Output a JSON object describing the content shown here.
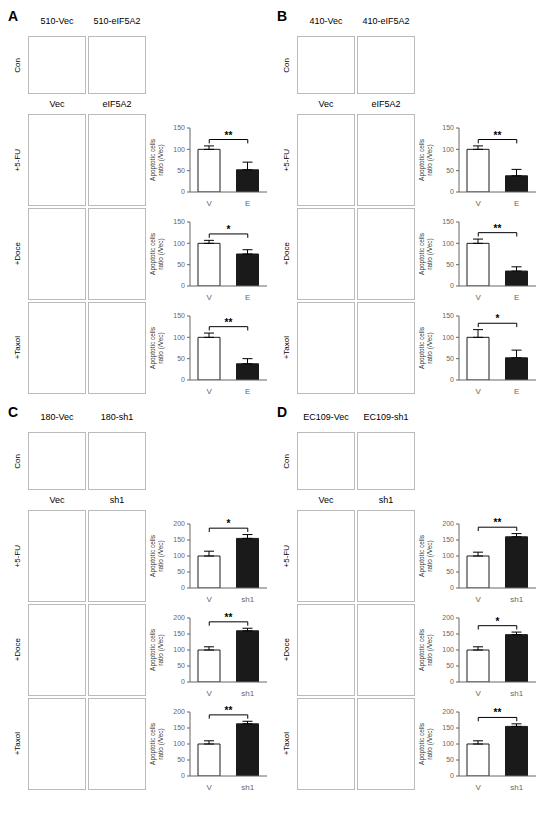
{
  "chart_data": [
    {
      "type": "bar",
      "title": "+5-FU",
      "categories": [
        "V",
        "E"
      ],
      "values": [
        100,
        52
      ],
      "error": [
        8,
        18
      ],
      "colors": [
        "#ffffff",
        "#1a1a1a"
      ],
      "annotations": [
        "**"
      ],
      "ylabel": "Apoptotic cells\nratio (/Vec)",
      "ylim": [
        0,
        150
      ],
      "yticks": [
        0,
        50,
        100,
        150
      ],
      "grid": false
    },
    {
      "type": "bar",
      "title": "+Doce",
      "categories": [
        "V",
        "E"
      ],
      "values": [
        100,
        75
      ],
      "error": [
        7,
        10
      ],
      "colors": [
        "#ffffff",
        "#1a1a1a"
      ],
      "annotations": [
        "*"
      ],
      "ylabel": "Apoptotic cells\nratio (/Vec)",
      "ylim": [
        0,
        150
      ],
      "yticks": [
        0,
        50,
        100,
        150
      ],
      "grid": false
    },
    {
      "type": "bar",
      "title": "+Taxol",
      "categories": [
        "V",
        "E"
      ],
      "values": [
        100,
        38
      ],
      "error": [
        10,
        12
      ],
      "colors": [
        "#ffffff",
        "#1a1a1a"
      ],
      "annotations": [
        "**"
      ],
      "ylabel": "Apoptotic cells\nratio (/Vec)",
      "ylim": [
        0,
        150
      ],
      "yticks": [
        0,
        50,
        100,
        150
      ],
      "grid": false
    },
    {
      "type": "bar",
      "title": "+5-FU",
      "categories": [
        "V",
        "E"
      ],
      "values": [
        100,
        38
      ],
      "error": [
        8,
        15
      ],
      "colors": [
        "#ffffff",
        "#1a1a1a"
      ],
      "annotations": [
        "**"
      ],
      "ylabel": "Apoptotic cells\nratio (/Vec)",
      "ylim": [
        0,
        150
      ],
      "yticks": [
        0,
        50,
        100,
        150
      ],
      "grid": false
    },
    {
      "type": "bar",
      "title": "+Doce",
      "categories": [
        "V",
        "E"
      ],
      "values": [
        100,
        35
      ],
      "error": [
        10,
        10
      ],
      "colors": [
        "#ffffff",
        "#1a1a1a"
      ],
      "annotations": [
        "**"
      ],
      "ylabel": "Apoptotic cells\nratio (/Vec)",
      "ylim": [
        0,
        150
      ],
      "yticks": [
        0,
        50,
        100,
        150
      ],
      "grid": false
    },
    {
      "type": "bar",
      "title": "+Taxol",
      "categories": [
        "V",
        "E"
      ],
      "values": [
        100,
        52
      ],
      "error": [
        18,
        18
      ],
      "colors": [
        "#ffffff",
        "#1a1a1a"
      ],
      "annotations": [
        "*"
      ],
      "ylabel": "Apoptotic cells\nratio (/Vec)",
      "ylim": [
        0,
        150
      ],
      "yticks": [
        0,
        50,
        100,
        150
      ],
      "grid": false
    },
    {
      "type": "bar",
      "title": "+5-FU",
      "categories": [
        "V",
        "sh1"
      ],
      "values": [
        100,
        155
      ],
      "error": [
        15,
        12
      ],
      "colors": [
        "#ffffff",
        "#1a1a1a"
      ],
      "annotations": [
        "*"
      ],
      "ylabel": "Apoptotic cells\nratio (/Vec)",
      "ylim": [
        0,
        200
      ],
      "yticks": [
        0,
        50,
        100,
        150,
        200
      ],
      "grid": false
    },
    {
      "type": "bar",
      "title": "+Doce",
      "categories": [
        "V",
        "sh1"
      ],
      "values": [
        100,
        160
      ],
      "error": [
        10,
        8
      ],
      "colors": [
        "#ffffff",
        "#1a1a1a"
      ],
      "annotations": [
        "**"
      ],
      "ylabel": "Apoptotic cells\nratio (/Vec)",
      "ylim": [
        0,
        200
      ],
      "yticks": [
        0,
        50,
        100,
        150,
        200
      ],
      "grid": false
    },
    {
      "type": "bar",
      "title": "+Taxol",
      "categories": [
        "V",
        "sh1"
      ],
      "values": [
        100,
        163
      ],
      "error": [
        10,
        8
      ],
      "colors": [
        "#ffffff",
        "#1a1a1a"
      ],
      "annotations": [
        "**"
      ],
      "ylabel": "Apoptotic cells\nratio (/Vec)",
      "ylim": [
        0,
        200
      ],
      "yticks": [
        0,
        50,
        100,
        150,
        200
      ],
      "grid": false
    },
    {
      "type": "bar",
      "title": "+5-FU",
      "categories": [
        "V",
        "sh1"
      ],
      "values": [
        100,
        160
      ],
      "error": [
        12,
        10
      ],
      "colors": [
        "#ffffff",
        "#1a1a1a"
      ],
      "annotations": [
        "**"
      ],
      "ylabel": "Apoptotic cells\nratio (/Vec)",
      "ylim": [
        0,
        200
      ],
      "yticks": [
        0,
        50,
        100,
        150,
        200
      ],
      "grid": false
    },
    {
      "type": "bar",
      "title": "+Doce",
      "categories": [
        "V",
        "sh1"
      ],
      "values": [
        100,
        148
      ],
      "error": [
        10,
        8
      ],
      "colors": [
        "#ffffff",
        "#1a1a1a"
      ],
      "annotations": [
        "*"
      ],
      "ylabel": "Apoptotic cells\nratio (/Vec)",
      "ylim": [
        0,
        200
      ],
      "yticks": [
        0,
        50,
        100,
        150,
        200
      ],
      "grid": false
    },
    {
      "type": "bar",
      "title": "+Taxol",
      "categories": [
        "V",
        "sh1"
      ],
      "values": [
        100,
        155
      ],
      "error": [
        10,
        8
      ],
      "colors": [
        "#ffffff",
        "#1a1a1a"
      ],
      "annotations": [
        "**"
      ],
      "ylabel": "Apoptotic cells\nratio (/Vec)",
      "ylim": [
        0,
        200
      ],
      "yticks": [
        0,
        50,
        100,
        150,
        200
      ],
      "grid": false
    }
  ],
  "panels": [
    {
      "label": "A",
      "titles": [
        "510-Vec",
        "510-eIF5A2"
      ],
      "row_label": "Con",
      "column_labels": [
        "Vec",
        "eIF5A2"
      ]
    },
    {
      "label": "B",
      "titles": [
        "410-Vec",
        "410-eIF5A2"
      ],
      "row_label": "Con",
      "column_labels": [
        "Vec",
        "eIF5A2"
      ]
    },
    {
      "label": "C",
      "titles": [
        "180-Vec",
        "180-sh1"
      ],
      "row_label": "Con",
      "column_labels": [
        "Vec",
        "sh1"
      ]
    },
    {
      "label": "D",
      "titles": [
        "EC109-Vec",
        "EC109-sh1"
      ],
      "row_label": "Con",
      "column_labels": [
        "Vec",
        "sh1"
      ]
    }
  ]
}
